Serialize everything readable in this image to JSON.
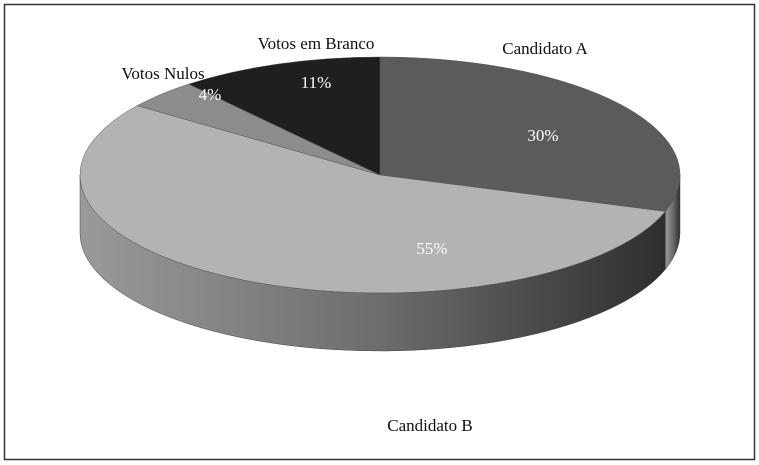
{
  "chart_data": {
    "type": "pie",
    "categories": [
      "Candidato A",
      "Candidato B",
      "Votos Nulos",
      "Votos em Branco"
    ],
    "values": [
      30,
      55,
      4,
      11
    ],
    "value_labels": [
      "30%",
      "55%",
      "4%",
      "11%"
    ],
    "colors": [
      "#5b5b5b",
      "#b3b3b3",
      "#8c8c8c",
      "#1f1f1f"
    ]
  }
}
